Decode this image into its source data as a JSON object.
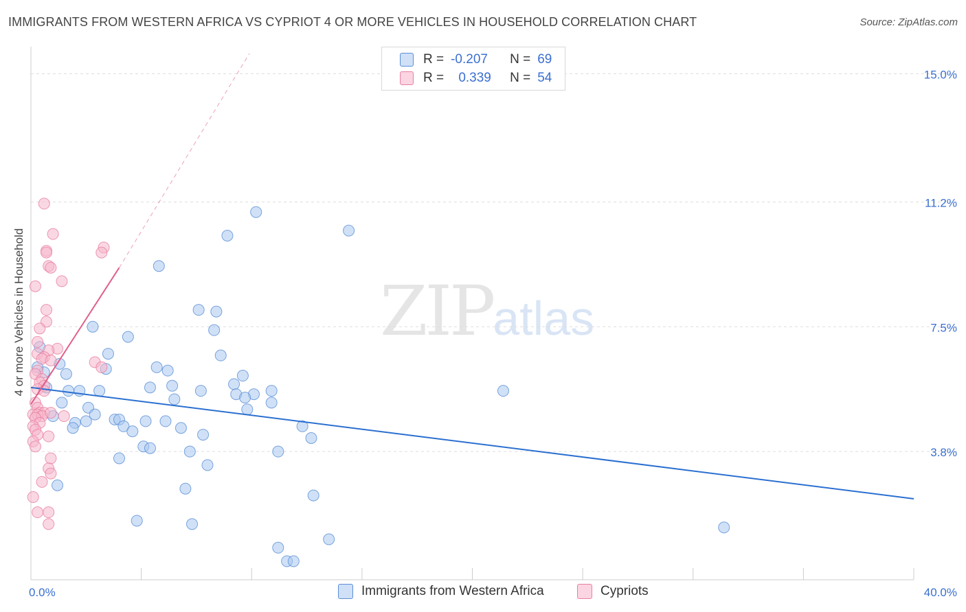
{
  "title": "IMMIGRANTS FROM WESTERN AFRICA VS CYPRIOT 4 OR MORE VEHICLES IN HOUSEHOLD CORRELATION CHART",
  "source": "Source: ZipAtlas.com",
  "watermark": {
    "zip": "ZIP",
    "atlas": "atlas"
  },
  "legend": {
    "rows": [
      {
        "r_label": "R =",
        "r_value": "-0.207",
        "n_label": "N =",
        "n_value": "69",
        "color": "#aac8f0"
      },
      {
        "r_label": "R =",
        "r_value": "0.339",
        "n_label": "N =",
        "n_value": "54",
        "color": "#f6b8cc"
      }
    ]
  },
  "bottom_legend": [
    {
      "label": "Immigrants from Western Africa",
      "color": "#aac8f0"
    },
    {
      "label": "Cypriots",
      "color": "#f6b8cc"
    }
  ],
  "colors": {
    "blue_fill": "#aac8f0",
    "blue_stroke": "#5b8ed6",
    "blue_line": "#2a6fd0",
    "pink_fill": "#f6b8cc",
    "pink_stroke": "#e87fa0",
    "pink_line": "#e0608a",
    "tick_label": "#3a6fd0",
    "grid": "#dddddd"
  },
  "chart_data": {
    "type": "scatter",
    "title": "IMMIGRANTS FROM WESTERN AFRICA VS CYPRIOT 4 OR MORE VEHICLES IN HOUSEHOLD CORRELATION CHART",
    "xlabel": "",
    "ylabel": "4 or more Vehicles in Household",
    "xlim": [
      0,
      40
    ],
    "ylim": [
      0,
      15.6
    ],
    "x_tick_labels": [
      "0.0%",
      "40.0%"
    ],
    "y_ticks": [
      3.8,
      7.5,
      11.2,
      15.0
    ],
    "y_tick_labels": [
      "3.8%",
      "7.5%",
      "11.2%",
      "15.0%"
    ],
    "grid": "horizontal dashed",
    "series": [
      {
        "name": "Immigrants from Western Africa",
        "points": [
          [
            10.2,
            10.9
          ],
          [
            14.4,
            10.35
          ],
          [
            8.9,
            10.2
          ],
          [
            5.8,
            9.3
          ],
          [
            7.6,
            8.0
          ],
          [
            8.4,
            7.95
          ],
          [
            2.8,
            7.5
          ],
          [
            8.3,
            7.4
          ],
          [
            4.4,
            7.2
          ],
          [
            3.5,
            6.7
          ],
          [
            8.6,
            6.65
          ],
          [
            5.7,
            6.3
          ],
          [
            6.2,
            6.2
          ],
          [
            3.4,
            6.25
          ],
          [
            1.6,
            6.1
          ],
          [
            0.6,
            6.15
          ],
          [
            9.6,
            6.05
          ],
          [
            9.2,
            5.8
          ],
          [
            5.4,
            5.7
          ],
          [
            6.4,
            5.75
          ],
          [
            0.7,
            5.7
          ],
          [
            1.7,
            5.6
          ],
          [
            2.2,
            5.6
          ],
          [
            3.1,
            5.6
          ],
          [
            7.7,
            5.6
          ],
          [
            9.3,
            5.5
          ],
          [
            10.1,
            5.5
          ],
          [
            10.9,
            5.6
          ],
          [
            6.5,
            5.35
          ],
          [
            9.7,
            5.4
          ],
          [
            1.4,
            5.25
          ],
          [
            10.9,
            5.25
          ],
          [
            21.4,
            5.6
          ],
          [
            2.6,
            5.1
          ],
          [
            9.8,
            5.05
          ],
          [
            1.0,
            4.85
          ],
          [
            2.9,
            4.9
          ],
          [
            3.8,
            4.75
          ],
          [
            4.0,
            4.75
          ],
          [
            5.2,
            4.7
          ],
          [
            6.1,
            4.7
          ],
          [
            2.0,
            4.65
          ],
          [
            2.5,
            4.7
          ],
          [
            4.2,
            4.55
          ],
          [
            6.8,
            4.5
          ],
          [
            1.9,
            4.5
          ],
          [
            12.3,
            4.55
          ],
          [
            4.6,
            4.4
          ],
          [
            7.8,
            4.3
          ],
          [
            12.7,
            4.2
          ],
          [
            5.1,
            3.95
          ],
          [
            5.4,
            3.9
          ],
          [
            11.2,
            3.8
          ],
          [
            7.2,
            3.8
          ],
          [
            4.0,
            3.6
          ],
          [
            8.0,
            3.4
          ],
          [
            1.2,
            2.8
          ],
          [
            7.0,
            2.7
          ],
          [
            12.8,
            2.5
          ],
          [
            4.8,
            1.75
          ],
          [
            7.3,
            1.65
          ],
          [
            31.4,
            1.55
          ],
          [
            13.5,
            1.2
          ],
          [
            11.2,
            0.95
          ],
          [
            11.6,
            0.55
          ],
          [
            11.9,
            0.55
          ],
          [
            0.4,
            6.9
          ],
          [
            0.3,
            6.3
          ],
          [
            1.3,
            6.4
          ]
        ]
      },
      {
        "name": "Cypriots",
        "points": [
          [
            0.6,
            11.15
          ],
          [
            1.0,
            10.25
          ],
          [
            0.7,
            9.75
          ],
          [
            3.3,
            9.85
          ],
          [
            0.7,
            9.7
          ],
          [
            3.2,
            9.7
          ],
          [
            0.8,
            9.3
          ],
          [
            0.9,
            9.25
          ],
          [
            1.4,
            8.85
          ],
          [
            0.2,
            8.7
          ],
          [
            0.7,
            8.0
          ],
          [
            0.7,
            7.65
          ],
          [
            0.4,
            7.45
          ],
          [
            0.3,
            7.05
          ],
          [
            1.2,
            6.85
          ],
          [
            0.8,
            6.8
          ],
          [
            0.3,
            6.7
          ],
          [
            0.6,
            6.6
          ],
          [
            0.5,
            6.55
          ],
          [
            0.9,
            6.5
          ],
          [
            2.9,
            6.45
          ],
          [
            3.2,
            6.3
          ],
          [
            0.3,
            6.2
          ],
          [
            0.2,
            6.1
          ],
          [
            0.5,
            5.95
          ],
          [
            0.4,
            5.85
          ],
          [
            0.6,
            5.75
          ],
          [
            0.3,
            5.65
          ],
          [
            0.6,
            5.6
          ],
          [
            0.2,
            5.25
          ],
          [
            0.3,
            5.1
          ],
          [
            0.4,
            4.95
          ],
          [
            0.6,
            4.95
          ],
          [
            0.1,
            4.9
          ],
          [
            0.3,
            4.9
          ],
          [
            0.5,
            4.85
          ],
          [
            0.2,
            4.8
          ],
          [
            1.5,
            4.85
          ],
          [
            0.4,
            4.65
          ],
          [
            0.1,
            4.55
          ],
          [
            0.2,
            4.45
          ],
          [
            0.3,
            4.3
          ],
          [
            0.8,
            4.25
          ],
          [
            0.1,
            4.1
          ],
          [
            0.9,
            3.6
          ],
          [
            0.8,
            3.3
          ],
          [
            0.9,
            3.15
          ],
          [
            0.5,
            2.9
          ],
          [
            0.1,
            2.45
          ],
          [
            0.3,
            2.0
          ],
          [
            0.8,
            2.0
          ],
          [
            0.8,
            1.65
          ],
          [
            0.9,
            4.95
          ],
          [
            0.2,
            3.95
          ]
        ]
      }
    ],
    "trend_lines": [
      {
        "series": "Immigrants from Western Africa",
        "from": [
          0,
          5.7
        ],
        "to": [
          40,
          2.4
        ],
        "style": "solid"
      },
      {
        "series": "Cypriots",
        "from": [
          0,
          5.2
        ],
        "to": [
          4.0,
          9.25
        ],
        "style": "solid"
      },
      {
        "series": "Cypriots",
        "from": [
          4.0,
          9.25
        ],
        "to": [
          9.9,
          15.6
        ],
        "style": "dashed"
      }
    ]
  }
}
